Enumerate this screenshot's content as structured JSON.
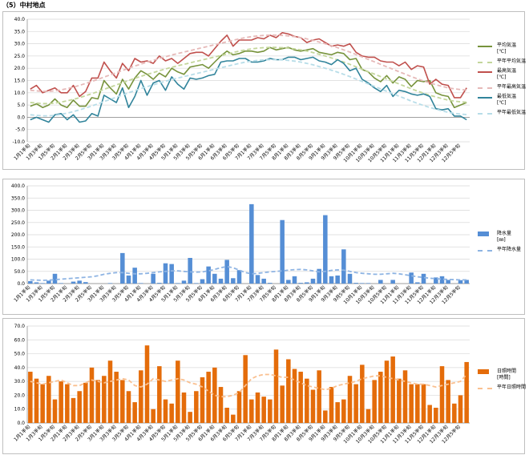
{
  "page_title": "（5）中村地点",
  "chart_data": [
    {
      "type": "line",
      "categories": [
        "1月1半旬",
        "1月2半旬",
        "1月3半旬",
        "1月4半旬",
        "1月5半旬",
        "1月6半旬",
        "2月1半旬",
        "2月2半旬",
        "2月3半旬",
        "2月4半旬",
        "2月5半旬",
        "2月6半旬",
        "3月1半旬",
        "3月2半旬",
        "3月3半旬",
        "3月4半旬",
        "3月5半旬",
        "3月6半旬",
        "4月1半旬",
        "4月2半旬",
        "4月3半旬",
        "4月4半旬",
        "4月5半旬",
        "4月6半旬",
        "5月1半旬",
        "5月2半旬",
        "5月3半旬",
        "5月4半旬",
        "5月5半旬",
        "5月6半旬",
        "6月1半旬",
        "6月2半旬",
        "6月3半旬",
        "6月4半旬",
        "6月5半旬",
        "6月6半旬",
        "7月1半旬",
        "7月2半旬",
        "7月3半旬",
        "7月4半旬",
        "7月5半旬",
        "7月6半旬",
        "8月1半旬",
        "8月2半旬",
        "8月3半旬",
        "8月4半旬",
        "8月5半旬",
        "8月6半旬",
        "9月1半旬",
        "9月2半旬",
        "9月3半旬",
        "9月4半旬",
        "9月5半旬",
        "9月6半旬",
        "10月1半旬",
        "10月2半旬",
        "10月3半旬",
        "10月4半旬",
        "10月5半旬",
        "10月6半旬",
        "11月1半旬",
        "11月2半旬",
        "11月3半旬",
        "11月4半旬",
        "11月5半旬",
        "11月6半旬",
        "12月1半旬",
        "12月2半旬",
        "12月3半旬",
        "12月4半旬",
        "12月5半旬",
        "12月6半旬"
      ],
      "tick_labels": [
        "1月1半旬",
        "1月3半旬",
        "1月5半旬",
        "2月1半旬",
        "2月3半旬",
        "2月5半旬",
        "3月1半旬",
        "3月3半旬",
        "3月5半旬",
        "4月1半旬",
        "4月3半旬",
        "4月5半旬",
        "5月1半旬",
        "5月3半旬",
        "5月5半旬",
        "6月1半旬",
        "6月3半旬",
        "6月5半旬",
        "7月1半旬",
        "7月3半旬",
        "7月5半旬",
        "8月1半旬",
        "8月3半旬",
        "8月5半旬",
        "9月1半旬",
        "9月3半旬",
        "9月5半旬",
        "10月1半旬",
        "10月3半旬",
        "10月5半旬",
        "11月1半旬",
        "11月3半旬",
        "11月5半旬",
        "12月1半旬",
        "12月3半旬",
        "12月5半旬"
      ],
      "ylim": [
        -10,
        40
      ],
      "ystep": 5,
      "ytick_decimals": 1,
      "grid": true,
      "legend": "right",
      "series": [
        {
          "name": "平均気温",
          "unit": "[℃]",
          "style": "solid",
          "color": "#77933c",
          "values": [
            4.5,
            5.5,
            4.0,
            5.0,
            7.5,
            5.0,
            4.0,
            7.0,
            4.5,
            4.5,
            8.0,
            7.5,
            15.0,
            12.0,
            9.5,
            15.5,
            11.5,
            16.0,
            19.0,
            17.5,
            15.5,
            18.0,
            16.5,
            20.0,
            18.5,
            17.5,
            20.5,
            21.0,
            21.5,
            20.0,
            22.5,
            25.0,
            27.0,
            25.5,
            26.0,
            27.0,
            27.0,
            26.5,
            27.0,
            28.5,
            27.5,
            28.0,
            28.5,
            27.5,
            27.0,
            27.5,
            28.0,
            26.5,
            26.0,
            25.5,
            26.5,
            26.0,
            23.5,
            24.0,
            19.5,
            18.5,
            16.0,
            14.5,
            17.0,
            14.0,
            16.5,
            15.5,
            12.5,
            15.0,
            14.5,
            15.0,
            10.0,
            9.0,
            8.5,
            4.0,
            5.0,
            6.0
          ]
        },
        {
          "name": "平年平均気温",
          "style": "dashed",
          "color": "#c3d69b",
          "values": [
            6.0,
            5.8,
            5.6,
            5.6,
            5.8,
            6.2,
            6.7,
            7.3,
            8.0,
            8.8,
            9.6,
            10.5,
            11.4,
            12.3,
            13.2,
            14.1,
            15.0,
            15.9,
            16.7,
            17.5,
            18.2,
            19.0,
            19.7,
            20.4,
            21.0,
            21.6,
            22.2,
            22.8,
            23.4,
            24.0,
            24.6,
            25.2,
            25.8,
            26.4,
            27.0,
            27.5,
            27.9,
            28.2,
            28.4,
            28.5,
            28.5,
            28.4,
            28.2,
            27.9,
            27.5,
            27.0,
            26.4,
            25.7,
            25.0,
            24.2,
            23.4,
            22.5,
            21.6,
            20.6,
            19.6,
            18.6,
            17.6,
            16.6,
            15.6,
            14.6,
            13.6,
            12.6,
            11.6,
            10.7,
            9.8,
            9.0,
            8.3,
            7.6,
            7.0,
            6.6,
            6.3,
            6.1
          ]
        },
        {
          "name": "最高気温",
          "unit": "[℃]",
          "style": "solid",
          "color": "#c0504d",
          "values": [
            11.5,
            13.0,
            10.0,
            11.0,
            12.0,
            10.0,
            10.0,
            13.0,
            8.5,
            10.5,
            16.0,
            16.0,
            22.5,
            19.0,
            16.0,
            22.0,
            19.0,
            24.0,
            22.5,
            23.0,
            22.0,
            25.0,
            23.0,
            24.0,
            22.0,
            24.0,
            26.0,
            26.5,
            26.5,
            25.0,
            28.0,
            31.0,
            33.5,
            29.0,
            31.5,
            31.5,
            31.5,
            32.5,
            32.0,
            33.5,
            32.5,
            34.5,
            34.0,
            33.0,
            32.5,
            30.5,
            31.5,
            32.0,
            30.5,
            29.0,
            29.5,
            29.0,
            30.0,
            26.5,
            25.0,
            24.5,
            24.5,
            23.0,
            22.5,
            22.5,
            21.0,
            22.5,
            19.5,
            21.0,
            20.5,
            13.5,
            15.5,
            13.5,
            13.0,
            8.0,
            8.0,
            12.0
          ]
        },
        {
          "name": "平年最高気温",
          "style": "dashed",
          "color": "#e6b9b8",
          "values": [
            11.0,
            10.8,
            10.6,
            10.6,
            10.8,
            11.2,
            11.7,
            12.3,
            13.0,
            13.8,
            14.6,
            15.5,
            16.4,
            17.3,
            18.2,
            19.1,
            20.0,
            20.9,
            21.7,
            22.5,
            23.2,
            24.0,
            24.7,
            25.4,
            26.0,
            26.6,
            27.2,
            27.8,
            28.4,
            29.0,
            29.6,
            30.2,
            30.8,
            31.4,
            32.0,
            32.5,
            32.9,
            33.2,
            33.4,
            33.5,
            33.5,
            33.4,
            33.2,
            32.9,
            32.5,
            32.0,
            31.4,
            30.7,
            30.0,
            29.2,
            28.4,
            27.5,
            26.6,
            25.6,
            24.6,
            23.6,
            22.6,
            21.6,
            20.6,
            19.6,
            18.6,
            17.6,
            16.6,
            15.7,
            14.8,
            14.0,
            13.3,
            12.6,
            12.0,
            11.6,
            11.3,
            11.1
          ]
        },
        {
          "name": "最低気温",
          "unit": "[℃]",
          "style": "solid",
          "color": "#31849b",
          "values": [
            -1.0,
            0.0,
            -1.0,
            -2.0,
            1.0,
            1.5,
            -1.0,
            1.0,
            -2.0,
            -1.5,
            1.5,
            0.5,
            9.0,
            7.5,
            6.0,
            12.0,
            4.0,
            8.5,
            15.0,
            9.0,
            14.0,
            15.0,
            11.0,
            16.5,
            13.5,
            11.5,
            16.0,
            15.5,
            16.0,
            17.0,
            17.5,
            22.5,
            23.0,
            23.0,
            24.0,
            24.0,
            22.5,
            22.5,
            23.0,
            24.0,
            23.5,
            23.5,
            24.5,
            24.5,
            23.5,
            24.0,
            24.5,
            23.0,
            22.5,
            21.5,
            23.5,
            22.0,
            19.0,
            20.0,
            15.5,
            14.0,
            12.0,
            10.5,
            13.0,
            8.5,
            11.0,
            10.5,
            9.5,
            9.0,
            9.5,
            8.5,
            3.5,
            3.0,
            3.5,
            0.5,
            0.5,
            -1.0
          ]
        },
        {
          "name": "平年最低気温",
          "style": "dashed",
          "color": "#b7dde8",
          "values": [
            1.0,
            0.8,
            0.6,
            0.6,
            0.8,
            1.2,
            1.7,
            2.3,
            3.0,
            3.8,
            4.6,
            5.5,
            6.4,
            7.3,
            8.2,
            9.1,
            10.0,
            10.9,
            11.7,
            12.5,
            13.2,
            14.0,
            14.7,
            15.4,
            16.0,
            16.6,
            17.2,
            17.8,
            18.4,
            19.0,
            19.6,
            20.2,
            20.8,
            21.4,
            22.0,
            22.5,
            22.9,
            23.2,
            23.4,
            23.5,
            23.5,
            23.4,
            23.2,
            22.9,
            22.5,
            22.0,
            21.4,
            20.7,
            20.0,
            19.2,
            18.4,
            17.5,
            16.6,
            15.6,
            14.6,
            13.6,
            12.6,
            11.6,
            10.6,
            9.6,
            8.6,
            7.6,
            6.6,
            5.7,
            4.8,
            4.0,
            3.3,
            2.6,
            2.0,
            1.6,
            1.3,
            1.1
          ]
        }
      ]
    },
    {
      "type": "bar",
      "ylim": [
        0,
        400
      ],
      "ystep": 50,
      "ytick_decimals": 1,
      "grid": true,
      "legend": "right",
      "series": [
        {
          "name": "降水量",
          "unit": "[㎜]",
          "style": "bar",
          "color": "#558ed5",
          "values": [
            10,
            5,
            2,
            12,
            40,
            2,
            0,
            8,
            12,
            6,
            0,
            0,
            0,
            2,
            0,
            125,
            33,
            65,
            2,
            0,
            40,
            3,
            83,
            80,
            2,
            12,
            105,
            2,
            18,
            70,
            40,
            20,
            97,
            22,
            55,
            0,
            325,
            35,
            20,
            3,
            0,
            260,
            15,
            30,
            3,
            5,
            20,
            60,
            280,
            30,
            33,
            140,
            40,
            3,
            2,
            2,
            0,
            15,
            0,
            15,
            0,
            0,
            45,
            5,
            40,
            0,
            25,
            30,
            15,
            0,
            14,
            15
          ]
        },
        {
          "name": "平年降水量",
          "style": "dashed",
          "color": "#8eb4e3",
          "values": [
            15,
            14,
            13,
            14,
            16,
            18,
            20,
            22,
            24,
            26,
            28,
            32,
            38,
            42,
            45,
            45,
            42,
            40,
            40,
            42,
            45,
            48,
            50,
            52,
            52,
            50,
            48,
            47,
            48,
            52,
            58,
            65,
            70,
            65,
            55,
            45,
            40,
            42,
            45,
            48,
            50,
            52,
            55,
            57,
            58,
            56,
            52,
            48,
            50,
            54,
            56,
            55,
            50,
            45,
            42,
            40,
            38,
            38,
            40,
            42,
            40,
            36,
            32,
            28,
            25,
            22,
            20,
            18,
            17,
            16,
            15,
            15
          ]
        }
      ]
    },
    {
      "type": "bar",
      "ylim": [
        0,
        70
      ],
      "ystep": 10,
      "ytick_decimals": 1,
      "grid": true,
      "legend": "right",
      "series": [
        {
          "name": "日照時間",
          "unit": "[時間]",
          "style": "bar",
          "color": "#e46c0a",
          "values": [
            37,
            32,
            28,
            34,
            17,
            30,
            28,
            18,
            23,
            29,
            40,
            31,
            34,
            45,
            37,
            31,
            23,
            15,
            38,
            56,
            10,
            41,
            17,
            14,
            45,
            22,
            8,
            23,
            33,
            37,
            40,
            26,
            11,
            6,
            23,
            49,
            17,
            22,
            19,
            17,
            53,
            27,
            46,
            39,
            37,
            32,
            24,
            38,
            9,
            26,
            15,
            17,
            34,
            28,
            42,
            10,
            31,
            37,
            45,
            48,
            32,
            38,
            28,
            28,
            28,
            13,
            11,
            41,
            31,
            14,
            20,
            44
          ]
        },
        {
          "name": "平年日照時間",
          "style": "dashed",
          "color": "#fac090",
          "values": [
            30,
            29,
            28,
            29,
            30,
            31,
            29,
            27,
            27,
            29,
            31,
            30,
            29,
            30,
            31,
            32,
            31,
            27,
            26,
            28,
            32,
            31,
            30,
            31,
            32,
            31,
            29,
            28,
            26,
            23,
            20,
            19,
            19,
            20,
            22,
            27,
            32,
            34,
            35,
            35,
            34,
            33,
            33,
            31,
            29,
            27,
            26,
            25,
            24,
            25,
            27,
            28,
            29,
            30,
            32,
            33,
            34,
            34,
            33,
            32,
            31,
            30,
            29,
            28,
            28,
            27,
            26,
            27,
            28,
            29,
            30,
            35
          ]
        }
      ]
    }
  ]
}
